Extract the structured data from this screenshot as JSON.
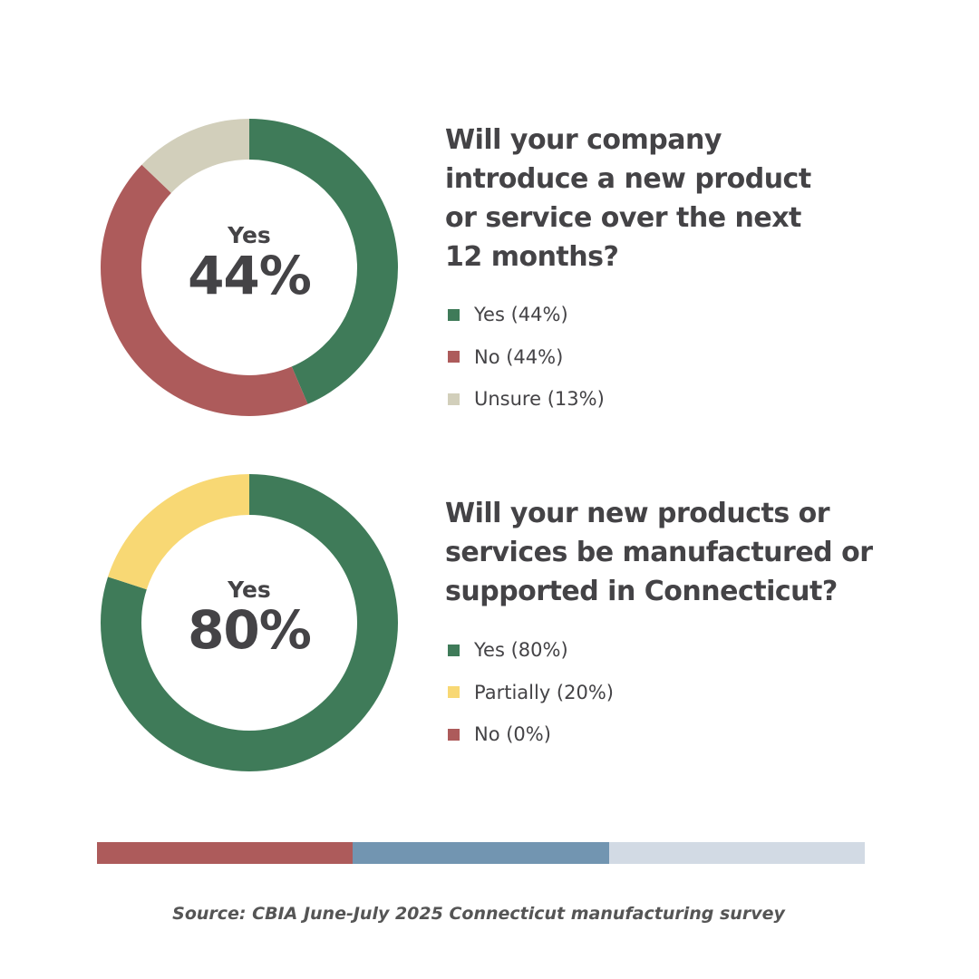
{
  "chart_data": [
    {
      "type": "pie",
      "variant": "donut",
      "title": "Will your company introduce a new product or service over the next 12 months?",
      "center_label": "Yes",
      "center_value": "44%",
      "categories": [
        "Yes",
        "No",
        "Unsure"
      ],
      "values": [
        44,
        44,
        13
      ],
      "colors": [
        "#3f7b59",
        "#ad5b5b",
        "#d2cfbb"
      ],
      "legend": [
        "Yes (44%)",
        "No (44%)",
        "Unsure (13%)"
      ],
      "legend_placement": "right"
    },
    {
      "type": "pie",
      "variant": "donut",
      "title": "Will your new products or services be manufactured or supported in Connecticut?",
      "center_label": "Yes",
      "center_value": "80%",
      "categories": [
        "Yes",
        "Partially",
        "No"
      ],
      "values": [
        80,
        20,
        0
      ],
      "colors": [
        "#3f7b59",
        "#f8d874",
        "#ad5b5b"
      ],
      "legend": [
        "Yes (80%)",
        "Partially (20%)",
        "No (0%)"
      ],
      "legend_placement": "right"
    }
  ],
  "decor_bar_colors": [
    "#ad5b5b",
    "#7295b1",
    "#d2dae4"
  ],
  "source": "Source: CBIA June-July 2025 Connecticut manufacturing survey"
}
